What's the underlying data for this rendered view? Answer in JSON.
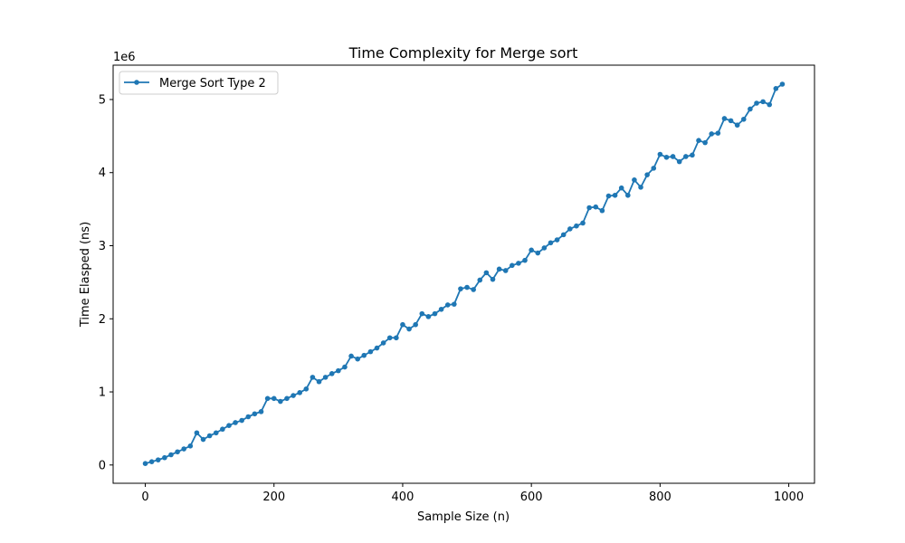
{
  "chart_data": {
    "type": "line",
    "title": "Time Complexity for Merge sort",
    "xlabel": "Sample Size (n)",
    "ylabel": "Time Elasped (ns)",
    "y_offset_label": "1e6",
    "xlim": [
      -50,
      1040
    ],
    "ylim": [
      -250000,
      5470000
    ],
    "xticks": [
      0,
      200,
      400,
      600,
      800,
      1000
    ],
    "yticks": [
      0,
      1,
      2,
      3,
      4,
      5
    ],
    "ytick_scale": 1000000,
    "grid": false,
    "legend_position": "upper-left",
    "color": "#1f77b4",
    "series": [
      {
        "name": "Merge Sort Type 2",
        "x": [
          0,
          10,
          20,
          30,
          40,
          50,
          60,
          70,
          80,
          90,
          100,
          110,
          120,
          130,
          140,
          150,
          160,
          170,
          180,
          190,
          200,
          210,
          220,
          230,
          240,
          250,
          260,
          270,
          280,
          290,
          300,
          310,
          320,
          330,
          340,
          350,
          360,
          370,
          380,
          390,
          400,
          410,
          420,
          430,
          440,
          450,
          460,
          470,
          480,
          490,
          500,
          510,
          520,
          530,
          540,
          550,
          560,
          570,
          580,
          590,
          600,
          610,
          620,
          630,
          640,
          650,
          660,
          670,
          680,
          690,
          700,
          710,
          720,
          730,
          740,
          750,
          760,
          770,
          780,
          790,
          800,
          810,
          820,
          830,
          840,
          850,
          860,
          870,
          880,
          890,
          900,
          910,
          920,
          930,
          940,
          950,
          960,
          970,
          980,
          990
        ],
        "y": [
          20000,
          45000,
          70000,
          100000,
          140000,
          180000,
          220000,
          260000,
          440000,
          350000,
          400000,
          440000,
          490000,
          540000,
          580000,
          610000,
          660000,
          700000,
          730000,
          910000,
          910000,
          870000,
          910000,
          950000,
          990000,
          1040000,
          1200000,
          1140000,
          1200000,
          1250000,
          1290000,
          1340000,
          1490000,
          1450000,
          1500000,
          1550000,
          1600000,
          1670000,
          1740000,
          1740000,
          1920000,
          1860000,
          1920000,
          2070000,
          2030000,
          2070000,
          2130000,
          2190000,
          2200000,
          2410000,
          2430000,
          2400000,
          2530000,
          2630000,
          2540000,
          2680000,
          2660000,
          2730000,
          2760000,
          2800000,
          2940000,
          2900000,
          2970000,
          3040000,
          3080000,
          3150000,
          3230000,
          3270000,
          3310000,
          3520000,
          3530000,
          3480000,
          3680000,
          3690000,
          3790000,
          3690000,
          3900000,
          3800000,
          3970000,
          4060000,
          4250000,
          4210000,
          4220000,
          4150000,
          4220000,
          4240000,
          4440000,
          4410000,
          4530000,
          4540000,
          4740000,
          4710000,
          4650000,
          4730000,
          4870000,
          4950000,
          4970000,
          4930000,
          5150000,
          5210000
        ]
      }
    ]
  }
}
